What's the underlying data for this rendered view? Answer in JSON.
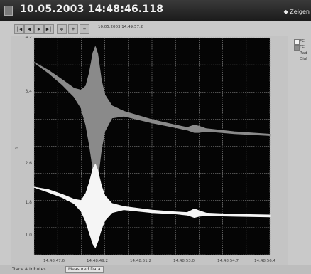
{
  "window": {
    "title": "10.05.2003 14:48:46.118",
    "show_button": "Zeigen"
  },
  "toolbar": {
    "buttons": [
      {
        "icon": "first-icon",
        "glyph": "|◀"
      },
      {
        "icon": "previous-icon",
        "glyph": "◀"
      },
      {
        "icon": "next-icon",
        "glyph": "▶"
      },
      {
        "icon": "last-icon",
        "glyph": "▶|"
      },
      {
        "icon": "move-icon",
        "glyph": "✥"
      },
      {
        "icon": "zoom-in-icon",
        "glyph": "+"
      },
      {
        "icon": "zoom-out-icon",
        "glyph": "−"
      }
    ],
    "time": "10.05.2003 14:49:57.2"
  },
  "legend": {
    "items": [
      {
        "label": "FC",
        "color": "#f4f4f4"
      },
      {
        "label": "FC",
        "color": "#8c8c8c"
      },
      {
        "label": "Rad",
        "color": ""
      },
      {
        "label": "Dial",
        "color": ""
      }
    ]
  },
  "tabs": {
    "items": [
      "Trace Attributes",
      "Measured Data"
    ]
  },
  "chart_data": {
    "type": "line",
    "title": "",
    "xlabel": "",
    "ylabel": "1",
    "x_ticks": [
      "14:48:47.6",
      "14:48:49.2",
      "14:48:51.2",
      "14:48:53.0",
      "14:48:54.7",
      "14:48:56.4"
    ],
    "y_ticks": [
      "4.2",
      "3.4",
      "2.6",
      "1.8",
      "1.0"
    ],
    "xlim": [
      0,
      10
    ],
    "ylim": [
      0.6,
      4.2
    ],
    "grid": true,
    "background": "#050505",
    "series": [
      {
        "color": "#8a8a8a",
        "envelope": [
          {
            "x": 0.0,
            "lo": 3.79,
            "hi": 3.79
          },
          {
            "x": 0.6,
            "lo": 3.62,
            "hi": 3.66
          },
          {
            "x": 1.2,
            "lo": 3.42,
            "hi": 3.5
          },
          {
            "x": 1.7,
            "lo": 3.22,
            "hi": 3.36
          },
          {
            "x": 2.0,
            "lo": 3.03,
            "hi": 3.33
          },
          {
            "x": 2.2,
            "lo": 2.75,
            "hi": 3.4
          },
          {
            "x": 2.35,
            "lo": 2.42,
            "hi": 3.62
          },
          {
            "x": 2.5,
            "lo": 2.02,
            "hi": 3.95
          },
          {
            "x": 2.6,
            "lo": 1.58,
            "hi": 4.05
          },
          {
            "x": 2.7,
            "lo": 1.85,
            "hi": 3.93
          },
          {
            "x": 2.85,
            "lo": 2.34,
            "hi": 3.5
          },
          {
            "x": 3.0,
            "lo": 2.65,
            "hi": 3.25
          },
          {
            "x": 3.3,
            "lo": 2.87,
            "hi": 3.07
          },
          {
            "x": 3.8,
            "lo": 2.9,
            "hi": 2.98
          },
          {
            "x": 5.0,
            "lo": 2.79,
            "hi": 2.84
          },
          {
            "x": 6.0,
            "lo": 2.71,
            "hi": 2.75
          },
          {
            "x": 6.5,
            "lo": 2.67,
            "hi": 2.71
          },
          {
            "x": 6.8,
            "lo": 2.63,
            "hi": 2.75
          },
          {
            "x": 7.0,
            "lo": 2.63,
            "hi": 2.73
          },
          {
            "x": 7.3,
            "lo": 2.65,
            "hi": 2.69
          },
          {
            "x": 8.5,
            "lo": 2.61,
            "hi": 2.64
          },
          {
            "x": 10.0,
            "lo": 2.58,
            "hi": 2.6
          }
        ]
      },
      {
        "color": "#f5f5f5",
        "envelope": [
          {
            "x": 0.0,
            "lo": 1.72,
            "hi": 1.72
          },
          {
            "x": 0.6,
            "lo": 1.64,
            "hi": 1.68
          },
          {
            "x": 1.2,
            "lo": 1.55,
            "hi": 1.6
          },
          {
            "x": 1.7,
            "lo": 1.45,
            "hi": 1.52
          },
          {
            "x": 2.0,
            "lo": 1.32,
            "hi": 1.5
          },
          {
            "x": 2.2,
            "lo": 1.15,
            "hi": 1.62
          },
          {
            "x": 2.35,
            "lo": 0.96,
            "hi": 1.8
          },
          {
            "x": 2.5,
            "lo": 0.78,
            "hi": 2.03
          },
          {
            "x": 2.6,
            "lo": 0.72,
            "hi": 2.1
          },
          {
            "x": 2.7,
            "lo": 0.82,
            "hi": 2.0
          },
          {
            "x": 2.85,
            "lo": 1.02,
            "hi": 1.75
          },
          {
            "x": 3.0,
            "lo": 1.17,
            "hi": 1.58
          },
          {
            "x": 3.3,
            "lo": 1.3,
            "hi": 1.45
          },
          {
            "x": 3.8,
            "lo": 1.35,
            "hi": 1.4
          },
          {
            "x": 5.0,
            "lo": 1.3,
            "hi": 1.34
          },
          {
            "x": 6.0,
            "lo": 1.28,
            "hi": 1.31
          },
          {
            "x": 6.5,
            "lo": 1.26,
            "hi": 1.3
          },
          {
            "x": 6.8,
            "lo": 1.22,
            "hi": 1.36
          },
          {
            "x": 7.0,
            "lo": 1.24,
            "hi": 1.33
          },
          {
            "x": 7.3,
            "lo": 1.25,
            "hi": 1.29
          },
          {
            "x": 8.5,
            "lo": 1.24,
            "hi": 1.27
          },
          {
            "x": 10.0,
            "lo": 1.23,
            "hi": 1.26
          }
        ]
      }
    ]
  }
}
